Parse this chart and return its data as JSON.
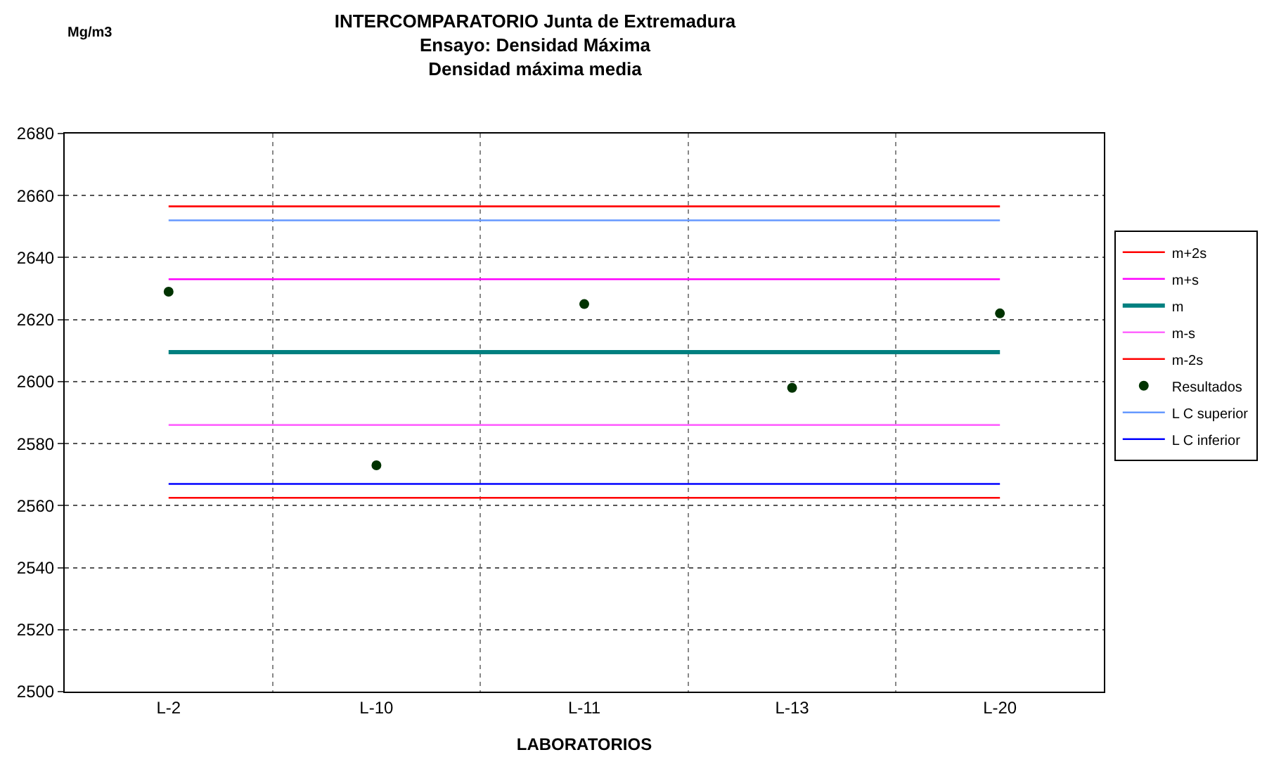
{
  "chart_data": {
    "type": "line",
    "title": "INTERCOMPARATORIO Junta de Extremadura\nEnsayo: Densidad Máxima\nDensidad máxima media",
    "annotations": [
      "Mg/m3"
    ],
    "xlabel": "LABORATORIOS",
    "categories": [
      "L-2",
      "L-10",
      "L-11",
      "L-13",
      "L-20"
    ],
    "series": [
      {
        "name": "m+2s",
        "color": "#ff0000",
        "values": [
          2656.5,
          2656.5,
          2656.5,
          2656.5,
          2656.5
        ]
      },
      {
        "name": "m+s",
        "color": "#ff00ff",
        "values": [
          2633,
          2633,
          2633,
          2633,
          2633
        ]
      },
      {
        "name": "m",
        "color": "#008080",
        "values": [
          2609.5,
          2609.5,
          2609.5,
          2609.5,
          2609.5
        ]
      },
      {
        "name": "m-s",
        "color": "#ff66ff",
        "values": [
          2586,
          2586,
          2586,
          2586,
          2586
        ]
      },
      {
        "name": "m-2s",
        "color": "#ff0000",
        "values": [
          2562.5,
          2562.5,
          2562.5,
          2562.5,
          2562.5
        ]
      },
      {
        "name": "Resultados",
        "type": "scatter",
        "marker": "circle",
        "color": "#003300",
        "values": [
          2629,
          2573,
          2625,
          2598,
          2622
        ]
      },
      {
        "name": "L C superior",
        "color": "#6699ff",
        "values": [
          2652,
          2652,
          2652,
          2652,
          2652
        ]
      },
      {
        "name": "L C inferior",
        "color": "#0000ff",
        "values": [
          2567,
          2567,
          2567,
          2567,
          2567
        ]
      }
    ],
    "ylim": [
      2500,
      2680
    ],
    "yticks": [
      2500,
      2520,
      2540,
      2560,
      2580,
      2600,
      2620,
      2640,
      2660,
      2680
    ],
    "grid": true,
    "legend": "right"
  }
}
